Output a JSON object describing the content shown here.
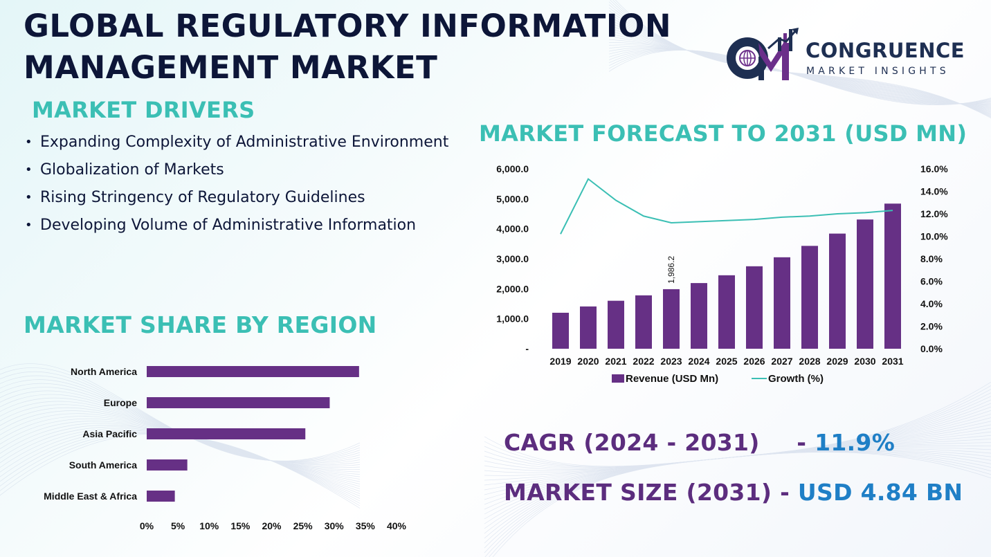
{
  "title_line1": "GLOBAL REGULATORY INFORMATION",
  "title_line2": "MANAGEMENT MARKET",
  "logo": {
    "name": "CONGRUENCE",
    "tagline": "MARKET INSIGHTS",
    "mark_text": "CM",
    "colors": {
      "navy": "#1e2f52",
      "purple": "#6b2f8a"
    }
  },
  "drivers": {
    "heading": "MARKET DRIVERS",
    "items": [
      "Expanding Complexity of Administrative Environment",
      "Globalization of Markets",
      "Rising Stringency of Regulatory Guidelines",
      "Developing Volume of Administrative Information"
    ]
  },
  "region": {
    "heading": "MARKET SHARE BY REGION"
  },
  "forecast": {
    "heading": "MARKET FORECAST TO 2031 (USD MN)"
  },
  "stats": {
    "cagr_label": "CAGR (2024 - 2031)",
    "cagr_sep": "-",
    "cagr_value": "11.9%",
    "size_label": "MARKET SIZE (2031)",
    "size_sep": "-",
    "size_value": "USD 4.84 BN"
  },
  "colors": {
    "teal": "#3bbfb4",
    "purple": "#5c2d7e",
    "bar_purple": "#663085",
    "navy": "#0d1638",
    "blue": "#1f7fc6"
  },
  "chart_data": [
    {
      "type": "bar",
      "categories": [
        "2019",
        "2020",
        "2021",
        "2022",
        "2023",
        "2024",
        "2025",
        "2026",
        "2027",
        "2028",
        "2029",
        "2030",
        "2031"
      ],
      "series": [
        {
          "name": "Revenue (USD Mn)",
          "axis": "left",
          "type": "bar",
          "values": [
            1200,
            1410,
            1600,
            1780,
            1986.2,
            2190,
            2450,
            2750,
            3050,
            3430,
            3840,
            4310,
            4840
          ]
        },
        {
          "name": "Growth (%)",
          "axis": "right",
          "type": "line",
          "values": [
            10.2,
            15.1,
            13.2,
            11.8,
            11.2,
            11.3,
            11.4,
            11.5,
            11.7,
            11.8,
            12.0,
            12.1,
            12.3
          ]
        }
      ],
      "data_labels": [
        {
          "index": 4,
          "text": "1,986.2"
        }
      ],
      "y_left": {
        "ticks": [
          "-",
          "1,000.0",
          "2,000.0",
          "3,000.0",
          "4,000.0",
          "5,000.0",
          "6,000.0"
        ],
        "ylim": [
          0,
          6000
        ]
      },
      "y_right": {
        "ticks": [
          "0.0%",
          "2.0%",
          "4.0%",
          "6.0%",
          "8.0%",
          "10.0%",
          "12.0%",
          "14.0%",
          "16.0%"
        ],
        "ylim": [
          0,
          16
        ]
      },
      "legend": "bottom",
      "grid": false
    },
    {
      "type": "bar",
      "orientation": "horizontal",
      "categories": [
        "North America",
        "Europe",
        "Asia Pacific",
        "South America",
        "Middle East & Africa"
      ],
      "values": [
        34,
        29.3,
        25.4,
        6.5,
        4.5
      ],
      "x_ticks": [
        "0%",
        "5%",
        "10%",
        "15%",
        "20%",
        "25%",
        "30%",
        "35%",
        "40%"
      ],
      "xlim": [
        0,
        40
      ],
      "grid": false
    }
  ]
}
